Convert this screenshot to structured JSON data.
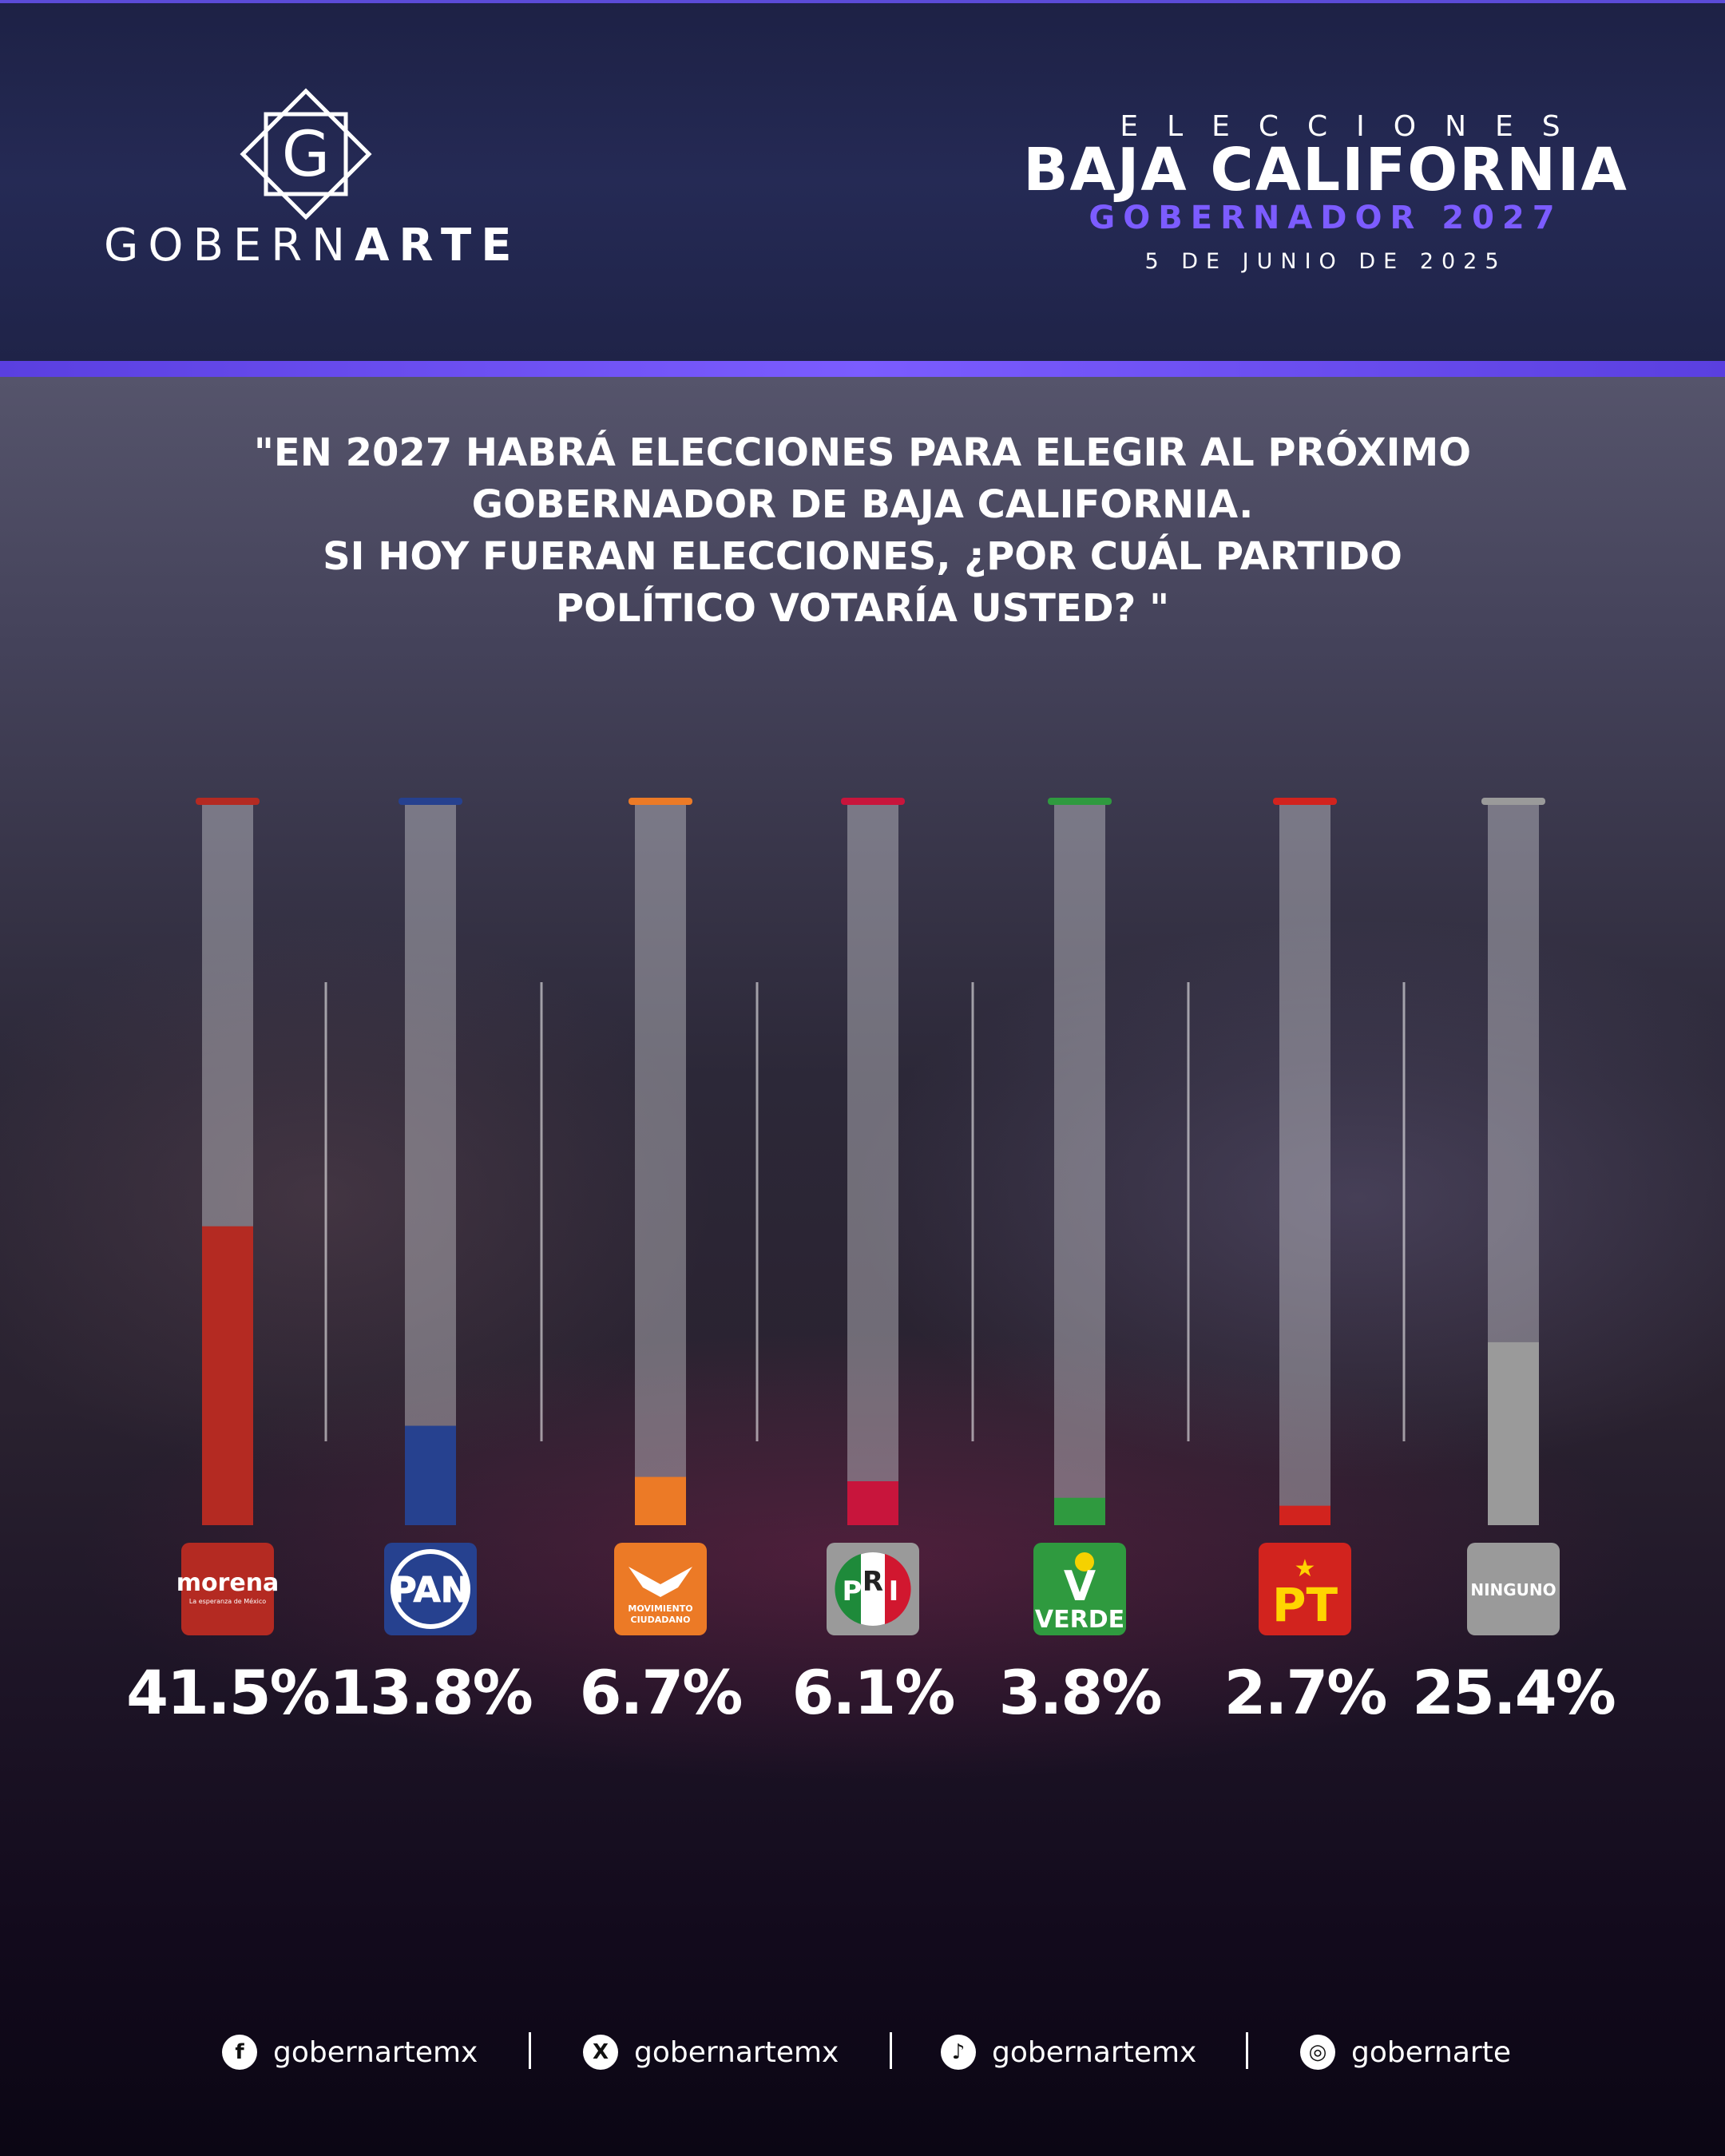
{
  "header": {
    "brand_left": "GOBERN",
    "brand_right": "ARTE",
    "logo_letter": "G",
    "elections_label": "ELECCIONES",
    "state": "BAJA CALIFORNIA",
    "office": "GOBERNADOR 2027",
    "date": "5 DE JUNIO DE 2025"
  },
  "question": "\"EN 2027 HABRÁ ELECCIONES PARA ELEGIR AL PRÓXIMO\nGOBERNADOR DE BAJA CALIFORNIA.\nSI HOY FUERAN ELECCIONES, ¿POR CUÁL PARTIDO\nPOLÍTICO VOTARÍA USTED? \"",
  "chart_data": {
    "type": "bar",
    "categories": [
      "morena",
      "PAN",
      "MOVIMIENTO CIUDADANO",
      "PRI",
      "VERDE",
      "PT",
      "NINGUNO"
    ],
    "values": [
      41.5,
      13.8,
      6.7,
      6.1,
      3.8,
      2.7,
      25.4
    ],
    "labels": [
      "41.5%",
      "13.8%",
      "6.7%",
      "6.1%",
      "3.8%",
      "2.7%",
      "25.4%"
    ],
    "colors": [
      "#b42a22",
      "#26418f",
      "#ec7a26",
      "#c8153c",
      "#2f9a3f",
      "#d2231e",
      "#9a9a9a"
    ],
    "ylim": [
      0,
      100
    ],
    "grid": false,
    "legend": "none"
  },
  "logos": {
    "morena": {
      "name": "morena",
      "tagline": "La esperanza de México"
    },
    "pan": {
      "name": "PAN"
    },
    "mc": {
      "line1": "MOVIMIENTO",
      "line2": "CIUDADANO"
    },
    "pri": {
      "p": "P",
      "r": "R",
      "i": "I"
    },
    "verde": {
      "name": "VERDE",
      "mark": "V"
    },
    "pt": {
      "name": "PT",
      "star": "★"
    },
    "ninguno": {
      "name": "NINGUNO"
    }
  },
  "social": [
    {
      "icon": "facebook-icon",
      "glyph": "f",
      "handle": "gobernartemx"
    },
    {
      "icon": "x-icon",
      "glyph": "X",
      "handle": "gobernartemx"
    },
    {
      "icon": "tiktok-icon",
      "glyph": "♪",
      "handle": "gobernartemx"
    },
    {
      "icon": "instagram-icon",
      "glyph": "◎",
      "handle": "gobernarte"
    }
  ]
}
